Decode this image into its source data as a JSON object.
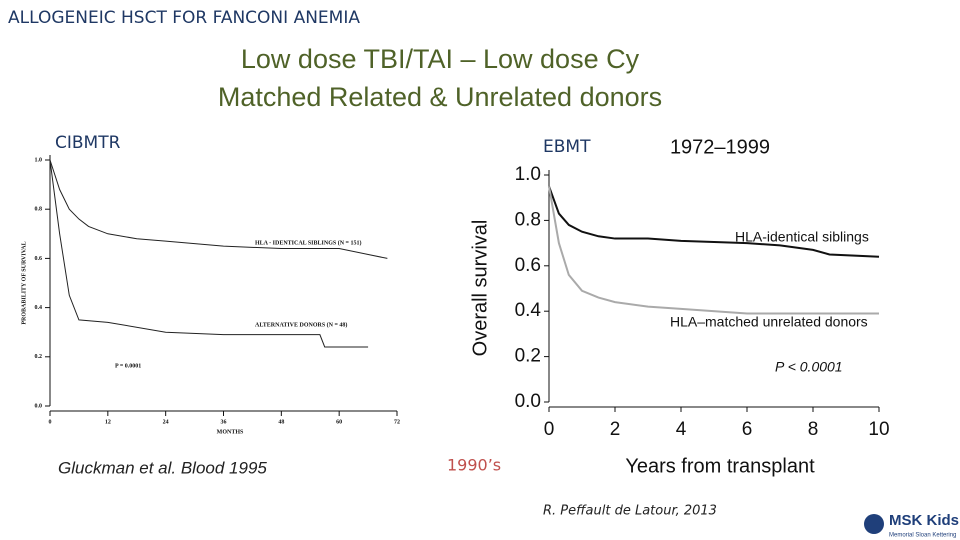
{
  "header": "ALLOGENEIC HSCT FOR FANCONI ANEMIA",
  "title": [
    "Low dose TBI/TAI – Low dose Cy",
    "Matched Related & Unrelated donors"
  ],
  "left_source": "CIBMTR",
  "right_source": "EBMT",
  "left_citation": "Gluckman et al. Blood 1995",
  "era": "1990’s",
  "right_citation": "R. Peffault de Latour, 2013",
  "logo": {
    "name": "MSK Kids",
    "subtitle": "Memorial Sloan Kettering"
  },
  "chart_data": [
    {
      "type": "line",
      "x_label": "MONTHS",
      "y_label": "PROBABILITY OF SURVIVAL",
      "annotation": "P = 0.0001",
      "xlim": [
        0,
        72
      ],
      "xticks": [
        0,
        12,
        24,
        36,
        48,
        60,
        72
      ],
      "ylim": [
        0,
        1
      ],
      "yticks": [
        {
          "value": 0,
          "label": "0.0"
        },
        {
          "value": 0.2,
          "label": "0.2"
        },
        {
          "value": 0.4,
          "label": "0.4"
        },
        {
          "value": 0.6,
          "label": "0.6"
        },
        {
          "value": 0.8,
          "label": "0.8"
        },
        {
          "value": 1,
          "label": "1.0"
        }
      ],
      "series": [
        {
          "name": "HLA - IDENTICAL SIBLINGS (N = 151)",
          "color": "#222222",
          "x": [
            0,
            2,
            4,
            6,
            8,
            12,
            18,
            24,
            30,
            36,
            48,
            60,
            70
          ],
          "values": [
            1.0,
            0.88,
            0.8,
            0.76,
            0.73,
            0.7,
            0.68,
            0.67,
            0.66,
            0.65,
            0.64,
            0.64,
            0.6
          ]
        },
        {
          "name": "ALTERNATIVE DONORS (N = 48)",
          "color": "#222222",
          "x": [
            0,
            2,
            4,
            6,
            12,
            24,
            36,
            48,
            56,
            57,
            66
          ],
          "values": [
            1.0,
            0.7,
            0.45,
            0.35,
            0.34,
            0.3,
            0.29,
            0.29,
            0.29,
            0.24,
            0.24
          ]
        }
      ]
    },
    {
      "type": "line",
      "title": "1972–1999",
      "x_label": "Years from transplant",
      "y_label": "Overall survival",
      "annotation": "P < 0.0001",
      "xlim": [
        0,
        10
      ],
      "xticks": [
        0,
        2,
        4,
        6,
        8,
        10
      ],
      "ylim": [
        0,
        1
      ],
      "yticks": [
        {
          "value": 0,
          "label": "0.0"
        },
        {
          "value": 0.2,
          "label": "0.2"
        },
        {
          "value": 0.4,
          "label": "0.4"
        },
        {
          "value": 0.6,
          "label": "0.6"
        },
        {
          "value": 0.8,
          "label": "0.8"
        },
        {
          "value": 1,
          "label": "1.0"
        }
      ],
      "series": [
        {
          "name": "HLA-identical siblings",
          "color": "#111111",
          "x": [
            0,
            0.3,
            0.6,
            1,
            1.5,
            2,
            3,
            4,
            6,
            7,
            8,
            8.5,
            10
          ],
          "values": [
            0.95,
            0.83,
            0.78,
            0.75,
            0.73,
            0.72,
            0.72,
            0.71,
            0.7,
            0.69,
            0.67,
            0.65,
            0.64
          ]
        },
        {
          "name": "HLA–matched unrelated donors",
          "color": "#aaaaaa",
          "x": [
            0,
            0.3,
            0.6,
            1,
            1.5,
            2,
            3,
            4,
            6,
            8,
            10
          ],
          "values": [
            0.95,
            0.7,
            0.56,
            0.49,
            0.46,
            0.44,
            0.42,
            0.41,
            0.39,
            0.39,
            0.39
          ]
        }
      ]
    }
  ]
}
